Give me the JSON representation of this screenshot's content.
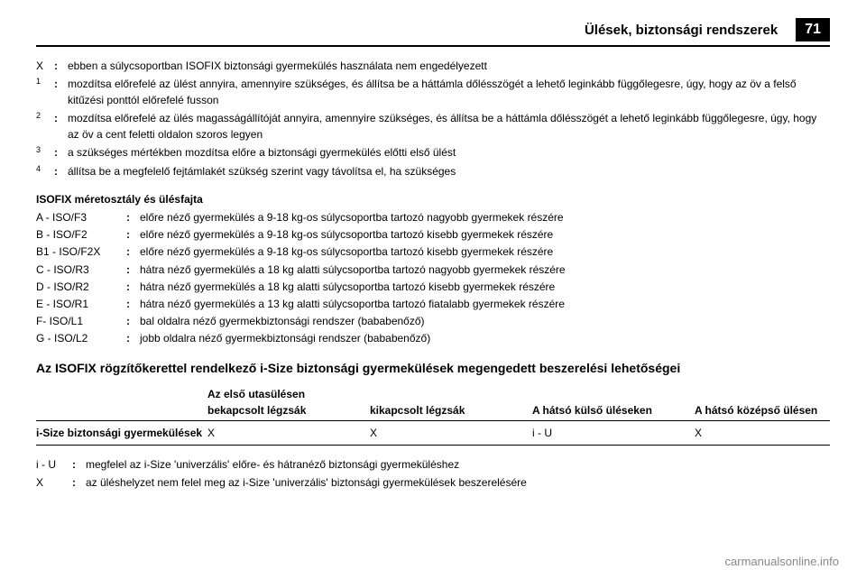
{
  "header": {
    "title": "Ülések, biztonsági rendszerek",
    "page_number": "71"
  },
  "footnotes": [
    {
      "key": "X",
      "sup": "",
      "text": "ebben a súlycsoportban ISOFIX biztonsági gyermekülés használata nem engedélyezett"
    },
    {
      "key": "",
      "sup": "1",
      "text": "mozdítsa előrefelé az ülést annyira, amennyire szükséges, és állítsa be a háttámla dőlésszögét a lehető leginkább függőlegesre, úgy, hogy az öv a felső kitűzési ponttól előrefelé fusson"
    },
    {
      "key": "",
      "sup": "2",
      "text": "mozdítsa előrefelé az ülés magasságállítóját annyira, amennyire szükséges, és állítsa be a háttámla dőlésszögét a lehető leginkább függőlegesre, úgy, hogy az öv a cent feletti oldalon szoros legyen"
    },
    {
      "key": "",
      "sup": "3",
      "text": "a szükséges mértékben mozdítsa előre a biztonsági gyermekülés előtti első ülést"
    },
    {
      "key": "",
      "sup": "4",
      "text": "állítsa be a megfelelő fejtámlakét szükség szerint vagy távolítsa el, ha szükséges"
    }
  ],
  "category": {
    "title": "ISOFIX méretosztály és ülésfajta",
    "rows": [
      {
        "key": "A - ISO/F3",
        "text": "előre néző gyermekülés a 9-18 kg-os súlycsoportba tartozó nagyobb gyermekek részére"
      },
      {
        "key": "B - ISO/F2",
        "text": "előre néző gyermekülés a 9-18 kg-os súlycsoportba tartozó kisebb gyermekek részére"
      },
      {
        "key": "B1 - ISO/F2X",
        "text": "előre néző gyermekülés a 9-18 kg-os súlycsoportba tartozó kisebb gyermekek részére"
      },
      {
        "key": "C - ISO/R3",
        "text": "hátra néző gyermekülés a 18 kg alatti súlycsoportba tartozó nagyobb gyermekek részére"
      },
      {
        "key": "D - ISO/R2",
        "text": "hátra néző gyermekülés a 18 kg alatti súlycsoportba tartozó kisebb gyermekek részére"
      },
      {
        "key": "E - ISO/R1",
        "text": "hátra néző gyermekülés a 13 kg alatti súlycsoportba tartozó fiatalabb gyermekek részére"
      },
      {
        "key": "F- ISO/L1",
        "text": "bal oldalra néző gyermekbiztonsági rendszer (bababenőző)"
      },
      {
        "key": "G - ISO/L2",
        "text": "jobb oldalra néző gyermekbiztonsági rendszer (bababenőző)"
      }
    ]
  },
  "section_title": "Az ISOFIX rögzítőkerettel rendelkező i-Size biztonsági gyermekülések megengedett beszerelési lehetőségei",
  "table": {
    "super_header": "Az első utasülésen",
    "headers": {
      "col2": "bekapcsolt légzsák",
      "col3": "kikapcsolt légzsák",
      "col4": "A hátsó külső üléseken",
      "col5": "A hátsó középső ülésen"
    },
    "row": {
      "label": "i-Size biztonsági gyermekülések",
      "col2": "X",
      "col3": "X",
      "col4": "i - U",
      "col5": "X"
    }
  },
  "definitions": [
    {
      "key": "i - U",
      "text": "megfelel az i-Size 'univerzális' előre- és hátranéző biztonsági gyermeküléshez"
    },
    {
      "key": "X",
      "text": "az üléshelyzet nem felel meg az i-Size 'univerzális' biztonsági gyermekülések beszerelésére"
    }
  ],
  "watermark": "carmanualsonline.info",
  "colors": {
    "text": "#000000",
    "background": "#ffffff",
    "watermark": "#888888",
    "header_bg": "#000000",
    "header_text": "#ffffff"
  }
}
